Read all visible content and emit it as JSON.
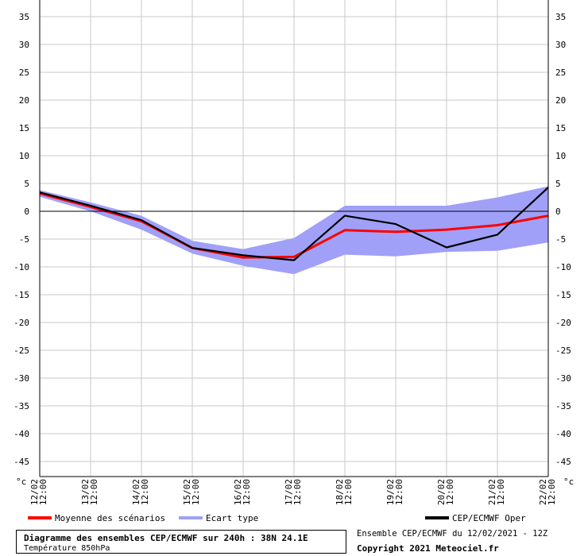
{
  "chart_data": {
    "type": "line",
    "title": "Diagramme des ensembles CEP/ECMWF sur 240h : 38N 24.1E",
    "subtitle": "Température 850hPa",
    "ylabel_left": "°c",
    "ylabel_right": "°c",
    "ylim": [
      -48,
      38
    ],
    "yticks": [
      35,
      30,
      25,
      20,
      15,
      10,
      5,
      0,
      -5,
      -10,
      -15,
      -20,
      -25,
      -30,
      -35,
      -40,
      -45
    ],
    "grid": true,
    "zero_line": true,
    "categories": [
      {
        "date": "12/02",
        "hour": "12:00"
      },
      {
        "date": "13/02",
        "hour": "12:00"
      },
      {
        "date": "14/02",
        "hour": "12:00"
      },
      {
        "date": "15/02",
        "hour": "12:00"
      },
      {
        "date": "16/02",
        "hour": "12:00"
      },
      {
        "date": "17/02",
        "hour": "12:00"
      },
      {
        "date": "18/02",
        "hour": "12:00"
      },
      {
        "date": "19/02",
        "hour": "12:00"
      },
      {
        "date": "20/02",
        "hour": "12:00"
      },
      {
        "date": "21/02",
        "hour": "12:00"
      },
      {
        "date": "22/02",
        "hour": "12:00"
      }
    ],
    "band": {
      "name": "Ecart type",
      "color": "#a0a0f8",
      "upper": [
        3.8,
        1.6,
        -0.8,
        -5.3,
        -6.8,
        -4.8,
        1.0,
        1.0,
        1.0,
        2.5,
        4.5
      ],
      "lower": [
        2.6,
        0.0,
        -3.3,
        -7.6,
        -9.8,
        -11.3,
        -7.8,
        -8.1,
        -7.3,
        -7.1,
        -5.6
      ]
    },
    "series": [
      {
        "name": "Moyenne des scénarios",
        "color": "#ff0000",
        "values": [
          3.2,
          0.8,
          -1.8,
          -6.6,
          -8.3,
          -8.2,
          -3.4,
          -3.7,
          -3.3,
          -2.5,
          -0.8
        ]
      },
      {
        "name": "CEP/ECMWF Oper",
        "color": "#000000",
        "values": [
          3.4,
          1.0,
          -1.6,
          -6.6,
          -7.9,
          -8.8,
          -0.8,
          -2.3,
          -6.5,
          -4.2,
          4.3
        ]
      }
    ]
  },
  "legend": {
    "mean_label": "Moyenne des scénarios",
    "band_label": "Ecart type",
    "oper_label": "CEP/ECMWF Oper"
  },
  "footer": {
    "title": "Diagramme des ensembles CEP/ECMWF sur 240h : 38N 24.1E",
    "subtitle": "Température 850hPa",
    "run_info": "Ensemble CEP/ECMWF du 12/02/2021 - 12Z",
    "copyright": "Copyright 2021 Meteociel.fr"
  }
}
